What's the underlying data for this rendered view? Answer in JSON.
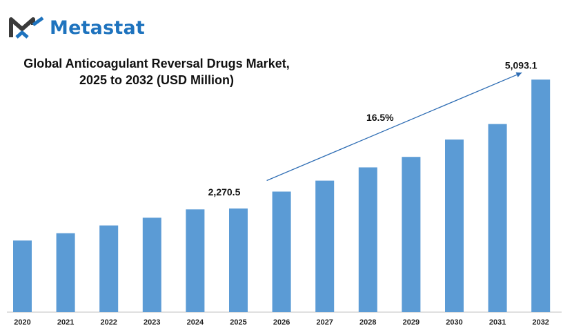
{
  "brand": {
    "name": "Metastat",
    "logo_icon": "metastat-m-logo-icon",
    "colors": {
      "dark": "#3a3a3a",
      "blue": "#1e73be"
    }
  },
  "chart_data": {
    "type": "bar",
    "title_line1": "Global Anticoagulant Reversal Drugs Market,",
    "title_line2": "2025 to 2032 (USD Million)",
    "categories": [
      "2020",
      "2021",
      "2022",
      "2023",
      "2024",
      "2025",
      "2026",
      "2027",
      "2028",
      "2029",
      "2030",
      "2031",
      "2032"
    ],
    "values": [
      1568,
      1728,
      1898,
      2068,
      2250,
      2270.5,
      2640,
      2880,
      3170,
      3400,
      3780,
      4120,
      5093.1
    ],
    "ylim": [
      0,
      5400
    ],
    "grid": false,
    "bar_color": "#5b9bd5",
    "annotations": [
      {
        "text": "2,270.5",
        "category": "2025"
      },
      {
        "text": "5,093.1",
        "category": "2032"
      },
      {
        "text": "16.5%",
        "category": "2028"
      }
    ],
    "trend_arrow": {
      "from": "2026",
      "to": "2032",
      "color": "#2e6db4"
    }
  }
}
